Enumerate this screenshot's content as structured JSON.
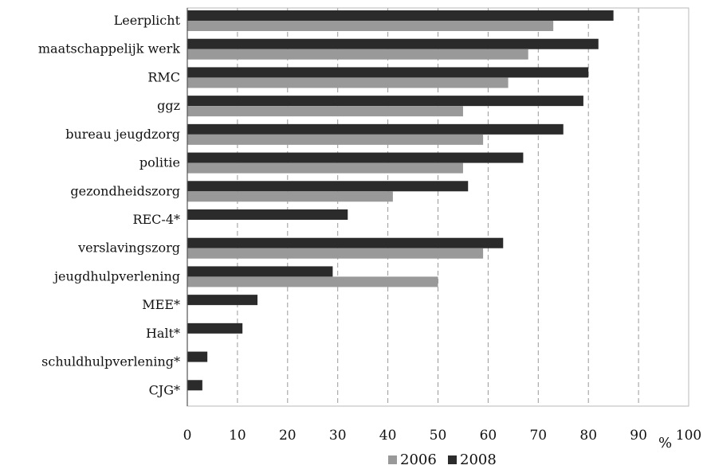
{
  "chart_data": {
    "type": "bar",
    "orientation": "horizontal",
    "categories": [
      "Leerplicht",
      "maatschappelijk werk",
      "RMC",
      "ggz",
      "bureau jeugdzorg",
      "politie",
      "gezondheidszorg",
      "REC-4*",
      "verslavingszorg",
      "jeugdhulpverlening",
      "MEE*",
      "Halt*",
      "schuldhulpverlening*",
      "CJG*"
    ],
    "series": [
      {
        "name": "2008",
        "color": "#2b2b2b",
        "values": [
          85,
          82,
          80,
          79,
          75,
          67,
          56,
          32,
          63,
          29,
          14,
          11,
          4,
          3
        ]
      },
      {
        "name": "2006",
        "color": "#999999",
        "values": [
          73,
          68,
          64,
          55,
          59,
          55,
          41,
          null,
          59,
          50,
          null,
          null,
          null,
          null
        ]
      }
    ],
    "xlim": [
      0,
      100
    ],
    "xticks": [
      0,
      10,
      20,
      30,
      40,
      50,
      60,
      70,
      80,
      90,
      100
    ],
    "unit_label": "%",
    "grid": "vertical dashed",
    "legend": {
      "placement": "bottom",
      "order": [
        "2006",
        "2008"
      ]
    }
  }
}
